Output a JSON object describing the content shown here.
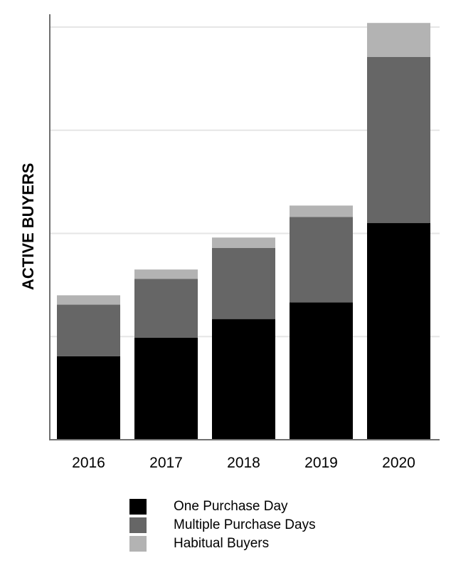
{
  "chart_data": {
    "type": "bar",
    "stacked": true,
    "categories": [
      "2016",
      "2017",
      "2018",
      "2019",
      "2020"
    ],
    "series": [
      {
        "name": "One Purchase Day",
        "color": "#000000",
        "values": [
          8.1,
          9.9,
          11.7,
          13.3,
          21.0
        ]
      },
      {
        "name": "Multiple Purchase Days",
        "color": "#666666",
        "values": [
          5.0,
          5.7,
          6.9,
          8.3,
          16.1
        ]
      },
      {
        "name": "Habitual Buyers",
        "color": "#b3b3b3",
        "values": [
          0.9,
          0.9,
          1.0,
          1.1,
          3.3
        ]
      }
    ],
    "title": "",
    "xlabel": "",
    "ylabel": "ACTIVE BUYERS",
    "ylim": [
      0,
      40
    ],
    "y_ticks_labeled": false,
    "grid": "horizontal",
    "legend_position": "bottom"
  }
}
